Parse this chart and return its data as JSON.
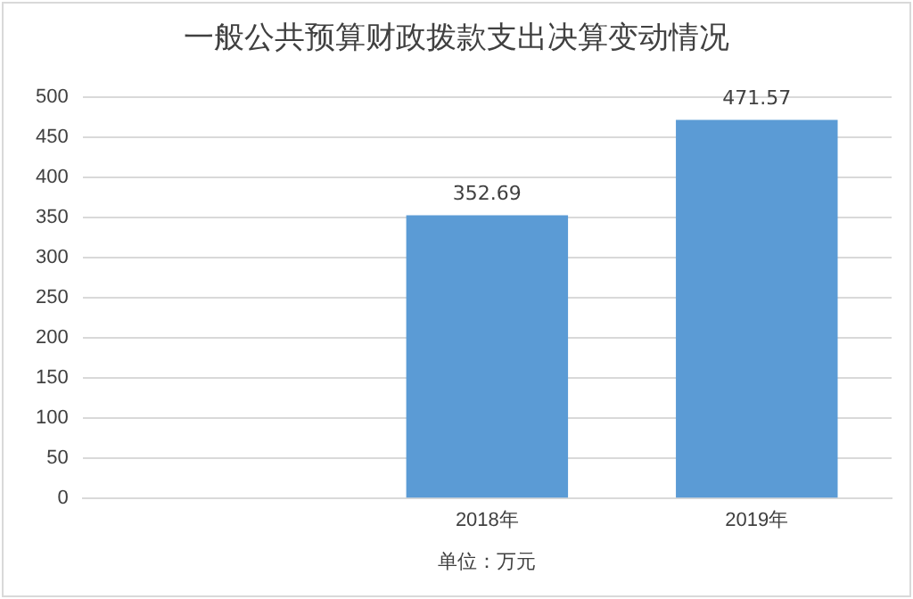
{
  "chart_data": {
    "type": "bar",
    "title": "一般公共预算财政拨款支出决算变动情况",
    "xlabel": "单位：万元",
    "categories": [
      null,
      "2018年",
      "2019年"
    ],
    "values": [
      null,
      352.69,
      471.57
    ],
    "color": "#5b9bd5",
    "ylim": [
      0,
      500
    ],
    "yticks": [
      0,
      50,
      100,
      150,
      200,
      250,
      300,
      350,
      400,
      450,
      500
    ],
    "grid": "y",
    "data_labels": true,
    "legend": false
  }
}
